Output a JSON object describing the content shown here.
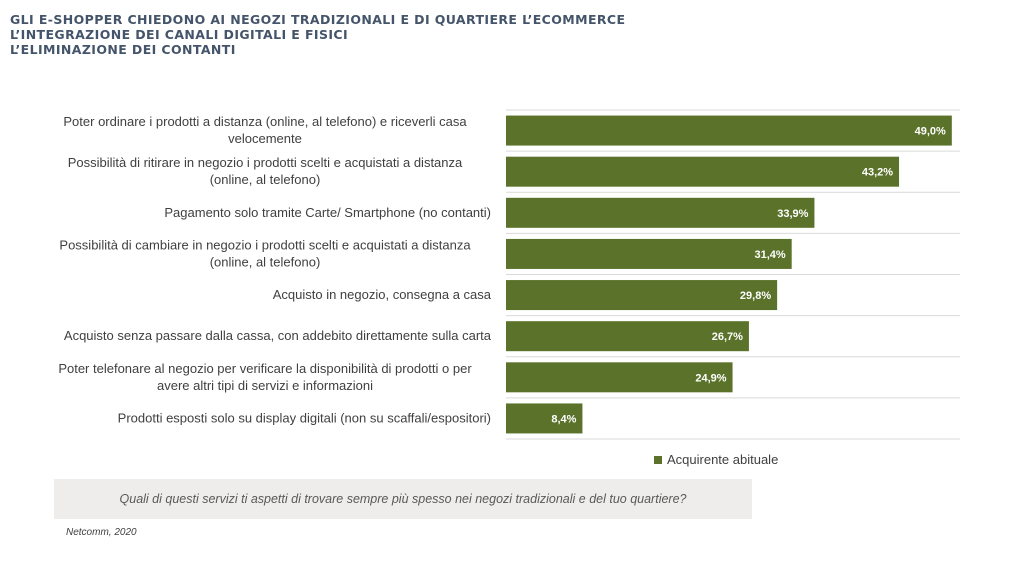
{
  "title_lines": [
    "GLI E-SHOPPER CHIEDONO AI NEGOZI TRADIZIONALI E DI QUARTIERE L’ECOMMERCE",
    "L’INTEGRAZIONE DEI CANALI  DIGITALI E FISICI",
    "L’ELIMINAZIONE DEI CONTANTI"
  ],
  "chart_data": {
    "type": "bar",
    "orientation": "horizontal",
    "categories": [
      [
        "Poter ordinare i prodotti a distanza (online, al telefono) e riceverli casa",
        "velocemente"
      ],
      [
        "Possibilità di ritirare in negozio i prodotti scelti e acquistati a distanza",
        "(online, al telefono)"
      ],
      [
        "Pagamento solo tramite Carte/ Smartphone (no contanti)"
      ],
      [
        "Possibilità di cambiare in negozio i prodotti scelti e acquistati a distanza",
        "(online, al telefono)"
      ],
      [
        "Acquisto in negozio, consegna a casa"
      ],
      [
        "Acquisto senza passare dalla cassa, con addebito direttamente sulla carta"
      ],
      [
        "Poter telefonare al negozio per verificare la disponibilità di prodotti o per",
        "avere altri tipi di servizi e informazioni"
      ],
      [
        "Prodotti esposti solo su display digitali (non su scaffali/espositori)"
      ]
    ],
    "series": [
      {
        "name": "Acquirente abituale",
        "values": [
          49.0,
          43.2,
          33.9,
          31.4,
          29.8,
          26.7,
          24.9,
          8.4
        ],
        "labels": [
          "49,0%",
          "43,2%",
          "33,9%",
          "31,4%",
          "29,8%",
          "26,7%",
          "24,9%",
          "8,4%"
        ],
        "color": "#5a7229"
      }
    ],
    "xlim": [
      0,
      50
    ],
    "legend_position": "bottom-right",
    "gridline_color": "#d9d9d9"
  },
  "question": "Quali di questi servizi ti aspetti di trovare sempre più spesso nei negozi tradizionali e del tuo quartiere?",
  "source": "Netcomm, 2020"
}
